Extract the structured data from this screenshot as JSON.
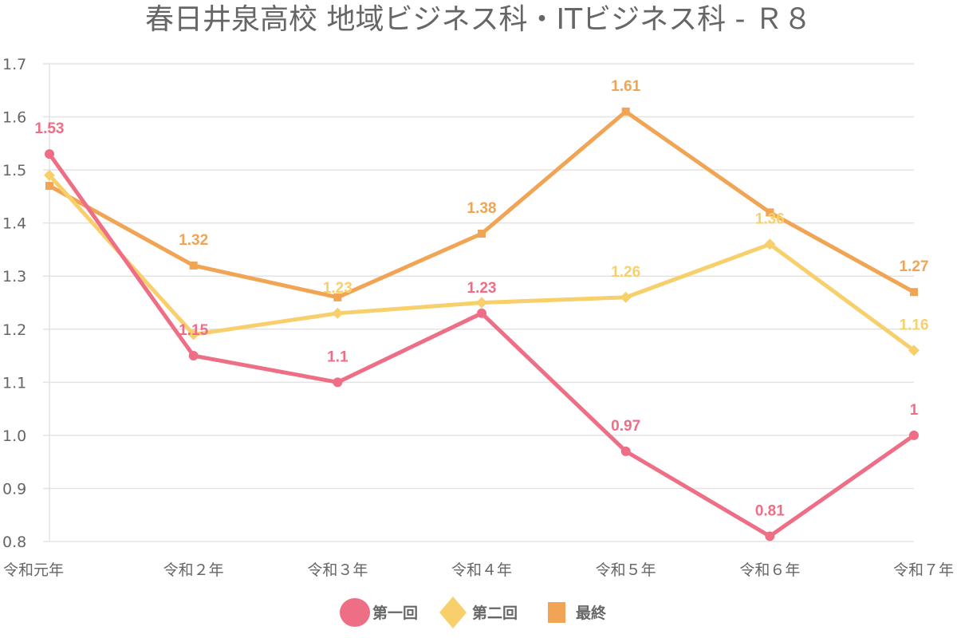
{
  "chart_data": {
    "type": "line",
    "title": "春日井泉高校 地域ビジネス科・ITビジネス科 - Ｒ８",
    "xlabel": "",
    "ylabel": "",
    "categories": [
      "令和元年",
      "令和２年",
      "令和３年",
      "令和４年",
      "令和５年",
      "令和６年",
      "令和７年"
    ],
    "ylim": [
      0.8,
      1.7
    ],
    "yticks": [
      "0.8",
      "0.9",
      "1.0",
      "1.1",
      "1.2",
      "1.3",
      "1.4",
      "1.5",
      "1.6",
      "1.7"
    ],
    "grid": true,
    "legend_position": "bottom-center",
    "series": [
      {
        "name": "第一回",
        "color": "#ee6e85",
        "marker": "circle",
        "values": [
          1.53,
          1.15,
          1.1,
          1.23,
          0.97,
          0.81,
          1.0
        ],
        "labels": [
          "1.53",
          "1.15",
          "1.1",
          "1.23",
          "0.97",
          "0.81",
          "1"
        ]
      },
      {
        "name": "第二回",
        "color": "#f7cf6b",
        "marker": "diamond",
        "values": [
          1.49,
          1.19,
          1.23,
          1.25,
          1.26,
          1.36,
          1.16
        ],
        "labels": [
          "",
          "",
          "1.23",
          "",
          "1.26",
          "1.36",
          "1.16"
        ]
      },
      {
        "name": "最終",
        "color": "#f1a454",
        "marker": "square",
        "values": [
          1.47,
          1.32,
          1.26,
          1.38,
          1.61,
          1.42,
          1.27
        ],
        "labels": [
          "",
          "1.32",
          "",
          "1.38",
          "1.61",
          "",
          "1.27"
        ]
      }
    ]
  }
}
